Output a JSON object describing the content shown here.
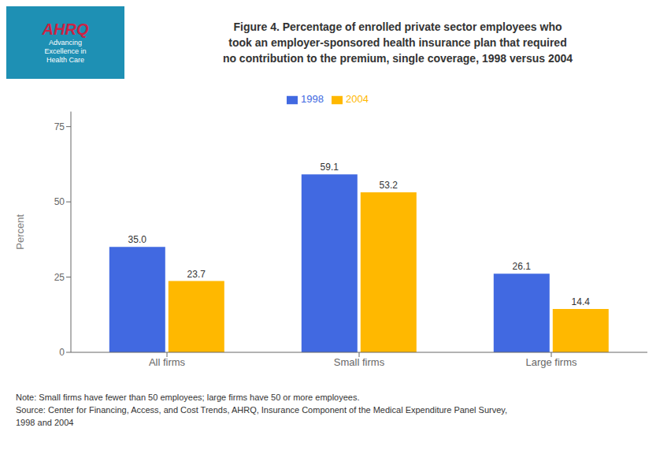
{
  "chart_data": {
    "type": "bar",
    "title": "Figure 4. Percentage of enrolled private sector employees who\ntook an employer-sponsored health insurance plan that required\nno contribution to the premium, single coverage, 1998 versus 2004",
    "categories": [
      "All firms",
      "Small firms",
      "Large firms"
    ],
    "series": [
      {
        "name": "1998",
        "color": "#4169E1",
        "values": [
          35.0,
          59.1,
          26.1
        ],
        "value_labels": [
          "35.0",
          "59.1",
          "26.1"
        ]
      },
      {
        "name": "2004",
        "color": "#FFB800",
        "values": [
          23.7,
          53.2,
          14.4
        ],
        "value_labels": [
          "23.7",
          "53.2",
          "14.4"
        ]
      }
    ],
    "ylabel": "Percent",
    "ylim": [
      0,
      80
    ],
    "yticks": [
      0,
      25,
      50,
      75
    ],
    "grid": false,
    "legend": "top",
    "data_labels": true,
    "annotations": [
      "AHRQ",
      "Advancing\nExcellence in\nHealth Care",
      "Note: Small firms have fewer than 50 employees; large firms have 50 or more employees.",
      "Source: Center for Financing, Access, and Cost Trends, AHRQ, Insurance Component of the Medical Expenditure Panel Survey,",
      "1998 and 2004"
    ]
  }
}
